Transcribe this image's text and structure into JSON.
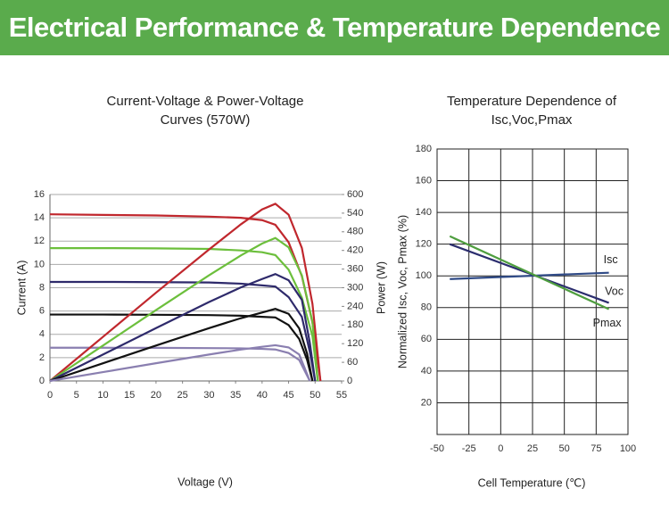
{
  "header": {
    "title": "Electrical Performance & Temperature Dependence"
  },
  "chart_data": [
    {
      "type": "line",
      "title": [
        "Current-Voltage & Power-Voltage",
        "Curves (570W)"
      ],
      "xlabel": "Voltage (V)",
      "ylabel": "Current (A)",
      "y2label": "Power (W)",
      "xlim": [
        0,
        55
      ],
      "xticks": [
        0,
        5,
        10,
        15,
        20,
        25,
        30,
        35,
        40,
        45,
        50,
        55
      ],
      "ylim": [
        0,
        16
      ],
      "yticks": [
        0,
        2,
        4,
        6,
        8,
        10,
        12,
        14,
        16
      ],
      "y2lim": [
        0,
        600
      ],
      "y2ticks": [
        0,
        60,
        120,
        180,
        240,
        300,
        360,
        420,
        480,
        540,
        600
      ],
      "grid": true,
      "series": [
        {
          "color": "#c0272d",
          "x": [
            0,
            10,
            20,
            30,
            36,
            40,
            42.5,
            45,
            47.5,
            49.5,
            51
          ],
          "values": [
            14.3,
            14.25,
            14.2,
            14.1,
            14.0,
            13.8,
            13.4,
            11.9,
            9,
            5,
            0
          ]
        },
        {
          "color": "#6cbf3c",
          "x": [
            0,
            10,
            20,
            30,
            36,
            40,
            42.5,
            45,
            47.5,
            49.5,
            50.5
          ],
          "values": [
            11.4,
            11.4,
            11.38,
            11.33,
            11.2,
            11.05,
            10.8,
            9.55,
            7.15,
            3.85,
            0
          ]
        },
        {
          "color": "#2e2a6b",
          "x": [
            0,
            10,
            20,
            30,
            36,
            40,
            42.5,
            45,
            47.5,
            49,
            50
          ],
          "values": [
            8.5,
            8.5,
            8.48,
            8.45,
            8.35,
            8.2,
            8.1,
            7.2,
            5.5,
            2.5,
            0
          ]
        },
        {
          "color": "#111111",
          "x": [
            0,
            10,
            20,
            30,
            36,
            40,
            42.5,
            45,
            47,
            48.5,
            49.5
          ],
          "values": [
            5.7,
            5.7,
            5.68,
            5.65,
            5.6,
            5.5,
            5.45,
            4.8,
            3.6,
            1.8,
            0
          ]
        },
        {
          "color": "#8a7fb0",
          "x": [
            0,
            10,
            20,
            30,
            36,
            40,
            42.5,
            45,
            47,
            48,
            49
          ],
          "values": [
            2.85,
            2.85,
            2.84,
            2.82,
            2.8,
            2.75,
            2.7,
            2.4,
            1.8,
            0.9,
            0
          ]
        },
        {
          "color": "#c0272d",
          "axis": "y2",
          "x": [
            0,
            10,
            20,
            30,
            36,
            40,
            42.5,
            45,
            47.5,
            49.5,
            51
          ],
          "values": [
            0,
            142,
            284,
            423,
            504,
            552,
            570,
            535,
            428,
            248,
            0
          ]
        },
        {
          "color": "#6cbf3c",
          "axis": "y2",
          "x": [
            0,
            10,
            20,
            30,
            36,
            40,
            42.5,
            45,
            47.5,
            49.5,
            50.5
          ],
          "values": [
            0,
            114,
            228,
            340,
            404,
            442,
            460,
            430,
            340,
            190,
            0
          ]
        },
        {
          "color": "#2e2a6b",
          "axis": "y2",
          "x": [
            0,
            10,
            20,
            30,
            36,
            40,
            42.5,
            45,
            47.5,
            49,
            50
          ],
          "values": [
            0,
            85,
            170,
            254,
            301,
            328,
            344,
            324,
            261,
            123,
            0
          ]
        },
        {
          "color": "#111111",
          "axis": "y2",
          "x": [
            0,
            10,
            20,
            30,
            36,
            40,
            42.5,
            45,
            47,
            48.5,
            49.5
          ],
          "values": [
            0,
            57,
            114,
            170,
            202,
            220,
            232,
            216,
            169,
            87,
            0
          ]
        },
        {
          "color": "#8a7fb0",
          "axis": "y2",
          "x": [
            0,
            10,
            20,
            30,
            36,
            40,
            42.5,
            45,
            47,
            48,
            49
          ],
          "values": [
            0,
            28.5,
            57,
            85,
            101,
            110,
            115,
            108,
            85,
            43,
            0
          ]
        }
      ]
    },
    {
      "type": "line",
      "title": [
        "Temperature Dependence of",
        "Isc,Voc,Pmax"
      ],
      "xlabel": "Cell Temperature (℃)",
      "ylabel": "Normalized Isc, Voc, Pmax (%)",
      "xlim": [
        -50,
        100
      ],
      "xticks": [
        -50,
        -25,
        0,
        25,
        50,
        75,
        100
      ],
      "ylim": [
        0,
        180
      ],
      "yticks": [
        20,
        40,
        60,
        80,
        100,
        120,
        140,
        160,
        180
      ],
      "grid": true,
      "xgrid": true,
      "series": [
        {
          "name": "Isc",
          "color": "#2f4a86",
          "x": [
            -40,
            85
          ],
          "values": [
            98,
            102
          ]
        },
        {
          "name": "Voc",
          "color": "#2b2d6e",
          "x": [
            -40,
            85
          ],
          "values": [
            120,
            83
          ]
        },
        {
          "name": "Pmax",
          "color": "#4f9e3f",
          "x": [
            -40,
            85
          ],
          "values": [
            125,
            79
          ]
        }
      ]
    }
  ]
}
